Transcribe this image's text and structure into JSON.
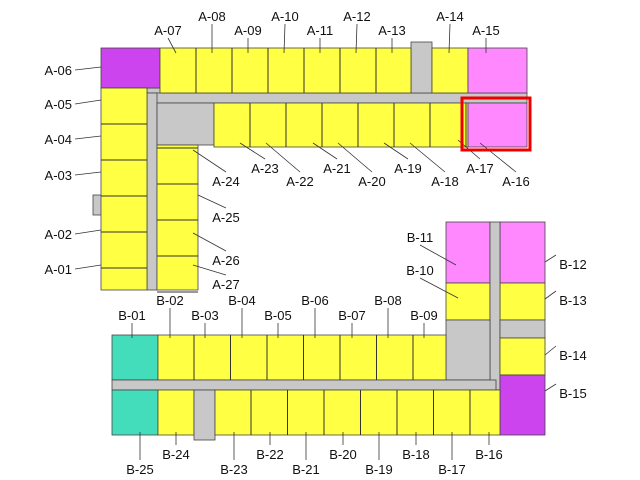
{
  "colors": {
    "standard_unit": "#ffff44",
    "corner_unit": "#cc44ee",
    "large_unit": "#ff88ff",
    "teal_unit": "#44ddbb",
    "corridor": "#c8c8c8",
    "highlight": "#ee0000"
  },
  "building_a": {
    "units": [
      "A-01",
      "A-02",
      "A-03",
      "A-04",
      "A-05",
      "A-06",
      "A-07",
      "A-08",
      "A-09",
      "A-10",
      "A-11",
      "A-12",
      "A-13",
      "A-14",
      "A-15",
      "A-16",
      "A-17",
      "A-18",
      "A-19",
      "A-20",
      "A-21",
      "A-22",
      "A-23",
      "A-24",
      "A-25",
      "A-26",
      "A-27"
    ],
    "highlighted_unit": "A-16"
  },
  "building_b": {
    "units": [
      "B-01",
      "B-02",
      "B-03",
      "B-04",
      "B-05",
      "B-06",
      "B-07",
      "B-08",
      "B-09",
      "B-10",
      "B-11",
      "B-12",
      "B-13",
      "B-14",
      "B-15",
      "B-16",
      "B-17",
      "B-18",
      "B-19",
      "B-20",
      "B-21",
      "B-22",
      "B-23",
      "B-24",
      "B-25"
    ]
  }
}
